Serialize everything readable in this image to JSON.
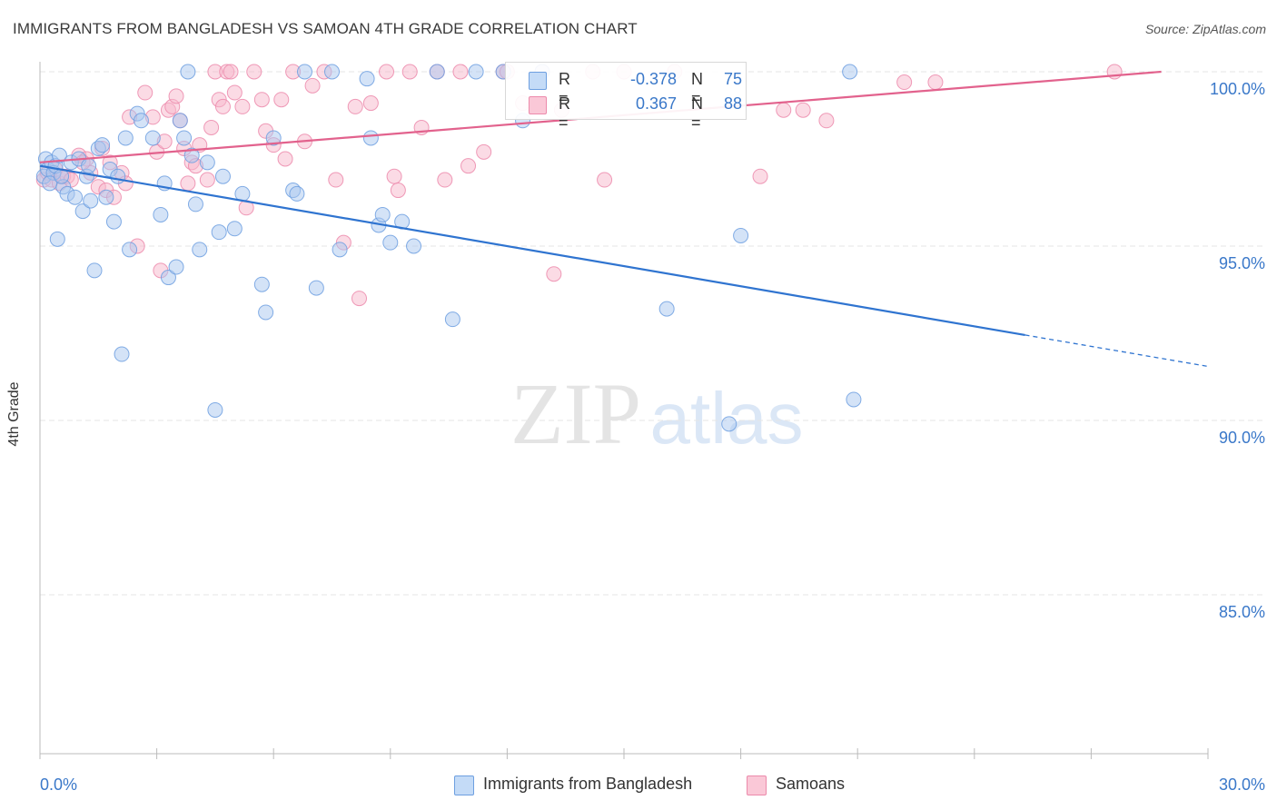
{
  "title": "IMMIGRANTS FROM BANGLADESH VS SAMOAN 4TH GRADE CORRELATION CHART",
  "source": "Source: ZipAtlas.com",
  "watermark": {
    "part1": "ZIP",
    "part2": "atlas"
  },
  "colors": {
    "blue_fill": "#aac8f0",
    "blue_stroke": "#6d9fe0",
    "blue_line": "#2f74d0",
    "pink_fill": "#f7b8cb",
    "pink_stroke": "#ec8aab",
    "pink_line": "#e2628d",
    "axis_text": "#3a78c9",
    "grid": "#e5e5e5"
  },
  "legend": {
    "r_label": "R =",
    "n_label": "N =",
    "series": [
      {
        "r": "-0.378",
        "n": "75"
      },
      {
        "r": "0.367",
        "n": "88"
      }
    ]
  },
  "chart_data": {
    "type": "scatter",
    "title": "IMMIGRANTS FROM BANGLADESH VS SAMOAN 4TH GRADE CORRELATION CHART",
    "xlabel": "",
    "ylabel": "4th Grade",
    "xlim": [
      0,
      30
    ],
    "ylim": [
      80,
      100.5
    ],
    "x_tick_labels": [
      "0.0%",
      "30.0%"
    ],
    "y_ticks": [
      85,
      90,
      95,
      100
    ],
    "y_tick_labels": [
      "85.0%",
      "90.0%",
      "95.0%",
      "100.0%"
    ],
    "grid": true,
    "series": [
      {
        "name": "Immigrants from Bangladesh",
        "color": "blue",
        "r": -0.378,
        "n": 75,
        "trend": {
          "x0": 0,
          "y0": 97.3,
          "x1": 25.3,
          "y1": 92.45,
          "dash_to_x": 30,
          "dash_to_y": 91.55
        },
        "points": [
          [
            0.1,
            97.0
          ],
          [
            0.15,
            97.5
          ],
          [
            0.2,
            97.2
          ],
          [
            0.3,
            97.4
          ],
          [
            0.35,
            97.1
          ],
          [
            0.4,
            97.3
          ],
          [
            0.5,
            97.6
          ],
          [
            0.6,
            96.7
          ],
          [
            0.7,
            96.5
          ],
          [
            0.8,
            97.4
          ],
          [
            1.0,
            97.5
          ],
          [
            1.2,
            97.0
          ],
          [
            0.9,
            96.4
          ],
          [
            1.1,
            96.0
          ],
          [
            1.3,
            96.3
          ],
          [
            1.5,
            97.8
          ],
          [
            1.6,
            97.9
          ],
          [
            1.7,
            96.4
          ],
          [
            1.8,
            97.2
          ],
          [
            1.9,
            95.7
          ],
          [
            2.0,
            97.0
          ],
          [
            2.2,
            98.1
          ],
          [
            2.3,
            94.9
          ],
          [
            2.5,
            98.8
          ],
          [
            2.6,
            98.6
          ],
          [
            2.9,
            98.1
          ],
          [
            3.1,
            95.9
          ],
          [
            3.2,
            96.8
          ],
          [
            3.3,
            94.1
          ],
          [
            3.5,
            94.4
          ],
          [
            3.6,
            98.6
          ],
          [
            3.7,
            98.1
          ],
          [
            3.8,
            100.0
          ],
          [
            3.9,
            97.6
          ],
          [
            4.0,
            96.2
          ],
          [
            4.1,
            94.9
          ],
          [
            4.3,
            97.4
          ],
          [
            4.5,
            90.3
          ],
          [
            4.6,
            95.4
          ],
          [
            4.7,
            97.0
          ],
          [
            5.0,
            95.5
          ],
          [
            5.2,
            96.5
          ],
          [
            5.7,
            93.9
          ],
          [
            5.8,
            93.1
          ],
          [
            6.0,
            98.1
          ],
          [
            6.5,
            96.6
          ],
          [
            6.6,
            96.5
          ],
          [
            6.8,
            100.0
          ],
          [
            7.1,
            93.8
          ],
          [
            7.5,
            100.0
          ],
          [
            7.7,
            94.9
          ],
          [
            8.4,
            99.8
          ],
          [
            8.5,
            98.1
          ],
          [
            8.7,
            95.6
          ],
          [
            8.8,
            95.9
          ],
          [
            9.0,
            95.1
          ],
          [
            9.3,
            95.7
          ],
          [
            9.6,
            95.0
          ],
          [
            10.2,
            100.0
          ],
          [
            10.6,
            92.9
          ],
          [
            11.2,
            100.0
          ],
          [
            11.9,
            100.0
          ],
          [
            12.4,
            98.6
          ],
          [
            12.9,
            100.0
          ],
          [
            16.1,
            93.2
          ],
          [
            17.7,
            89.9
          ],
          [
            18.0,
            95.3
          ],
          [
            20.8,
            100.0
          ],
          [
            20.9,
            90.6
          ],
          [
            2.1,
            91.9
          ],
          [
            1.4,
            94.3
          ],
          [
            0.45,
            95.2
          ],
          [
            0.25,
            96.8
          ],
          [
            0.55,
            97.0
          ],
          [
            1.25,
            97.3
          ]
        ]
      },
      {
        "name": "Samoans",
        "color": "pink",
        "r": 0.367,
        "n": 88,
        "trend": {
          "x0": 0,
          "y0": 97.4,
          "x1": 28.8,
          "y1": 100.0
        },
        "points": [
          [
            0.1,
            96.9
          ],
          [
            0.2,
            97.1
          ],
          [
            0.3,
            96.9
          ],
          [
            0.4,
            97.2
          ],
          [
            0.5,
            96.8
          ],
          [
            0.6,
            97.0
          ],
          [
            0.7,
            97.0
          ],
          [
            0.8,
            96.9
          ],
          [
            1.0,
            97.6
          ],
          [
            1.2,
            97.5
          ],
          [
            1.3,
            97.1
          ],
          [
            1.5,
            96.7
          ],
          [
            1.6,
            97.8
          ],
          [
            1.7,
            96.6
          ],
          [
            1.8,
            97.4
          ],
          [
            1.9,
            96.4
          ],
          [
            2.1,
            97.1
          ],
          [
            2.2,
            96.8
          ],
          [
            2.3,
            98.7
          ],
          [
            2.5,
            95.0
          ],
          [
            2.7,
            99.4
          ],
          [
            2.9,
            98.7
          ],
          [
            3.0,
            97.7
          ],
          [
            3.1,
            94.3
          ],
          [
            3.2,
            98.0
          ],
          [
            3.3,
            98.9
          ],
          [
            3.4,
            99.0
          ],
          [
            3.5,
            99.3
          ],
          [
            3.6,
            98.6
          ],
          [
            3.7,
            97.8
          ],
          [
            3.8,
            96.8
          ],
          [
            3.9,
            97.4
          ],
          [
            4.0,
            97.3
          ],
          [
            4.1,
            97.9
          ],
          [
            4.3,
            96.9
          ],
          [
            4.4,
            98.4
          ],
          [
            4.5,
            100.0
          ],
          [
            4.6,
            99.2
          ],
          [
            4.7,
            99.0
          ],
          [
            4.8,
            100.0
          ],
          [
            4.9,
            100.0
          ],
          [
            5.0,
            99.4
          ],
          [
            5.2,
            99.0
          ],
          [
            5.3,
            96.1
          ],
          [
            5.5,
            100.0
          ],
          [
            5.7,
            99.2
          ],
          [
            5.8,
            98.3
          ],
          [
            6.0,
            97.9
          ],
          [
            6.2,
            99.2
          ],
          [
            6.3,
            97.5
          ],
          [
            6.5,
            100.0
          ],
          [
            6.8,
            98.0
          ],
          [
            7.0,
            99.6
          ],
          [
            7.3,
            100.0
          ],
          [
            7.6,
            96.9
          ],
          [
            7.8,
            95.1
          ],
          [
            8.1,
            99.0
          ],
          [
            8.2,
            93.5
          ],
          [
            8.5,
            99.1
          ],
          [
            8.9,
            100.0
          ],
          [
            9.1,
            97.0
          ],
          [
            9.2,
            96.6
          ],
          [
            9.5,
            100.0
          ],
          [
            9.8,
            98.4
          ],
          [
            10.2,
            100.0
          ],
          [
            10.4,
            96.9
          ],
          [
            10.8,
            100.0
          ],
          [
            11.0,
            97.3
          ],
          [
            11.4,
            97.7
          ],
          [
            11.9,
            100.0
          ],
          [
            12.0,
            100.0
          ],
          [
            12.4,
            99.1
          ],
          [
            12.7,
            99.0
          ],
          [
            12.9,
            100.0
          ],
          [
            13.2,
            94.2
          ],
          [
            13.4,
            98.9
          ],
          [
            14.2,
            100.0
          ],
          [
            14.5,
            96.9
          ],
          [
            15.0,
            100.0
          ],
          [
            16.3,
            100.0
          ],
          [
            18.5,
            97.0
          ],
          [
            19.1,
            98.9
          ],
          [
            19.6,
            98.9
          ],
          [
            20.2,
            98.6
          ],
          [
            22.2,
            99.7
          ],
          [
            23.0,
            99.7
          ],
          [
            27.6,
            100.0
          ],
          [
            1.1,
            97.4
          ]
        ]
      }
    ]
  }
}
